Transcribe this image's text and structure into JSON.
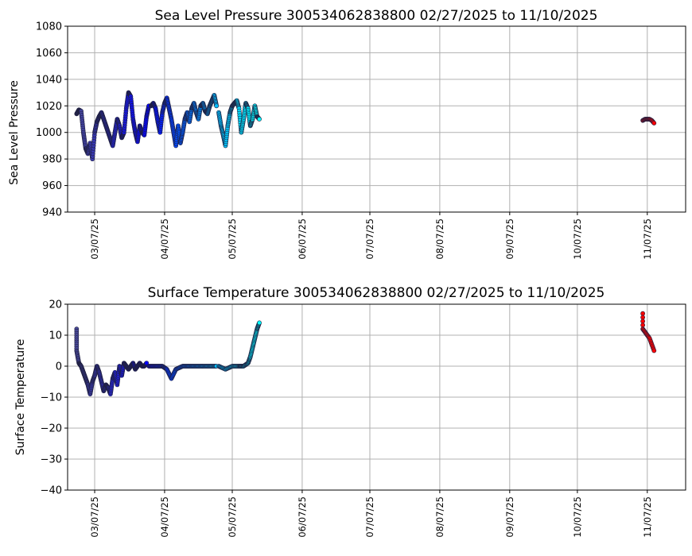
{
  "chart_data": [
    {
      "type": "scatter",
      "title": "Sea Level Pressure 300534062838800  02/27/2025 to 11/10/2025",
      "ylabel": "Sea Level Pressure",
      "xlabel": "",
      "ylim": [
        940,
        1080
      ],
      "yticks": [
        940,
        960,
        980,
        1000,
        1020,
        1040,
        1060,
        1080
      ],
      "xlim": [
        "2025-02-23",
        "2025-11-24"
      ],
      "xticks": [
        "2025-03-07",
        "2025-04-07",
        "2025-05-07",
        "2025-06-07",
        "2025-07-07",
        "2025-08-07",
        "2025-09-07",
        "2025-10-07",
        "2025-11-07"
      ],
      "xtick_labels": [
        "03/07/25",
        "04/07/25",
        "05/07/25",
        "06/07/25",
        "07/07/25",
        "08/07/25",
        "09/07/25",
        "10/07/25",
        "11/07/25"
      ],
      "grid": true,
      "color_by_time": [
        "#4a4a9a",
        "#0000ff",
        "#00bfff",
        "#00ffff",
        "#ff0000"
      ],
      "series": [
        {
          "color": "#ff0000",
          "x": [
            "2025-11-05",
            "2025-11-06",
            "2025-11-07",
            "2025-11-08",
            "2025-11-09",
            "2025-11-10"
          ],
          "y": [
            1009,
            1010,
            1010,
            1010,
            1009,
            1007
          ]
        }
      ],
      "segments": [
        {
          "color_start": "#4a4a9a",
          "color_end": "#0000ff",
          "x": [
            "2025-02-27",
            "2025-02-28",
            "2025-03-01",
            "2025-03-02",
            "2025-03-03",
            "2025-03-04",
            "2025-03-05",
            "2025-03-06",
            "2025-03-07",
            "2025-03-08",
            "2025-03-09",
            "2025-03-10",
            "2025-03-11",
            "2025-03-12",
            "2025-03-13",
            "2025-03-14",
            "2025-03-15",
            "2025-03-16",
            "2025-03-17",
            "2025-03-18",
            "2025-03-19",
            "2025-03-20",
            "2025-03-21",
            "2025-03-22",
            "2025-03-23",
            "2025-03-24",
            "2025-03-25",
            "2025-03-26",
            "2025-03-27",
            "2025-03-28",
            "2025-03-29",
            "2025-03-30",
            "2025-03-31"
          ],
          "y": [
            1014,
            1017,
            1016,
            1000,
            988,
            984,
            992,
            980,
            1000,
            1008,
            1012,
            1015,
            1010,
            1005,
            1000,
            995,
            990,
            1000,
            1010,
            1005,
            996,
            1000,
            1018,
            1030,
            1027,
            1010,
            1000,
            993,
            1005,
            1000,
            998,
            1012,
            1020
          ]
        },
        {
          "color_start": "#0000ff",
          "color_end": "#00bfff",
          "x": [
            "2025-04-01",
            "2025-04-02",
            "2025-04-03",
            "2025-04-04",
            "2025-04-05",
            "2025-04-06",
            "2025-04-07",
            "2025-04-08",
            "2025-04-09",
            "2025-04-10",
            "2025-04-11",
            "2025-04-12",
            "2025-04-13",
            "2025-04-14",
            "2025-04-15",
            "2025-04-16",
            "2025-04-17",
            "2025-04-18",
            "2025-04-19",
            "2025-04-20",
            "2025-04-21",
            "2025-04-22",
            "2025-04-23",
            "2025-04-24",
            "2025-04-25",
            "2025-04-26",
            "2025-04-27",
            "2025-04-28",
            "2025-04-29",
            "2025-04-30"
          ],
          "y": [
            1020,
            1022,
            1018,
            1008,
            1000,
            1015,
            1022,
            1026,
            1018,
            1010,
            1000,
            990,
            1005,
            992,
            1000,
            1010,
            1015,
            1008,
            1018,
            1022,
            1015,
            1010,
            1020,
            1022,
            1016,
            1014,
            1020,
            1024,
            1028,
            1020
          ]
        },
        {
          "color_start": "#00bfff",
          "color_end": "#00ffff",
          "x": [
            "2025-05-01",
            "2025-05-02",
            "2025-05-03",
            "2025-05-04",
            "2025-05-05",
            "2025-05-06",
            "2025-05-07",
            "2025-05-08",
            "2025-05-09",
            "2025-05-10",
            "2025-05-11",
            "2025-05-12",
            "2025-05-13",
            "2025-05-14",
            "2025-05-15",
            "2025-05-16",
            "2025-05-17",
            "2025-05-18",
            "2025-05-19"
          ],
          "y": [
            1015,
            1005,
            998,
            990,
            1005,
            1015,
            1020,
            1022,
            1024,
            1018,
            1000,
            1010,
            1022,
            1018,
            1005,
            1010,
            1020,
            1012,
            1010
          ]
        }
      ]
    },
    {
      "type": "scatter",
      "title": "Surface Temperature 300534062838800  02/27/2025 to 11/10/2025",
      "ylabel": "Surface Temperature",
      "xlabel": "",
      "ylim": [
        -40,
        20
      ],
      "yticks": [
        -40,
        -30,
        -20,
        -10,
        0,
        10,
        20
      ],
      "xlim": [
        "2025-02-23",
        "2025-11-24"
      ],
      "xticks": [
        "2025-03-07",
        "2025-04-07",
        "2025-05-07",
        "2025-06-07",
        "2025-07-07",
        "2025-08-07",
        "2025-09-07",
        "2025-10-07",
        "2025-11-07"
      ],
      "xtick_labels": [
        "03/07/25",
        "04/07/25",
        "05/07/25",
        "06/07/25",
        "07/07/25",
        "08/07/25",
        "09/07/25",
        "10/07/25",
        "11/07/25"
      ],
      "grid": true,
      "color_by_time": [
        "#4a4a9a",
        "#0000ff",
        "#00bfff",
        "#00ffff",
        "#ff0000"
      ],
      "series": [
        {
          "color": "#ff0000",
          "x": [
            "2025-11-05",
            "2025-11-05",
            "2025-11-06",
            "2025-11-07",
            "2025-11-08",
            "2025-11-09",
            "2025-11-10"
          ],
          "y": [
            17,
            12,
            11,
            10,
            9,
            7,
            5
          ]
        }
      ],
      "segments": [
        {
          "color_start": "#4a4a9a",
          "color_end": "#0000ff",
          "x": [
            "2025-02-27",
            "2025-02-27",
            "2025-02-28",
            "2025-03-01",
            "2025-03-02",
            "2025-03-03",
            "2025-03-04",
            "2025-03-05",
            "2025-03-06",
            "2025-03-07",
            "2025-03-08",
            "2025-03-09",
            "2025-03-10",
            "2025-03-11",
            "2025-03-12",
            "2025-03-13",
            "2025-03-14",
            "2025-03-15",
            "2025-03-16",
            "2025-03-17",
            "2025-03-18",
            "2025-03-19",
            "2025-03-20",
            "2025-03-21",
            "2025-03-22",
            "2025-03-23",
            "2025-03-24",
            "2025-03-25",
            "2025-03-26",
            "2025-03-27",
            "2025-03-28",
            "2025-03-29",
            "2025-03-30"
          ],
          "y": [
            12,
            5,
            1,
            0,
            -2,
            -4,
            -6,
            -9,
            -5,
            -3,
            0,
            -2,
            -5,
            -8,
            -6,
            -7,
            -9,
            -4,
            -2,
            -6,
            0,
            -3,
            1,
            0,
            -1,
            0,
            1,
            -1,
            0,
            1,
            0,
            0,
            1
          ]
        },
        {
          "color_start": "#0000ff",
          "color_end": "#00bfff",
          "x": [
            "2025-03-31",
            "2025-04-03",
            "2025-04-06",
            "2025-04-08",
            "2025-04-10",
            "2025-04-12",
            "2025-04-15",
            "2025-04-18",
            "2025-04-21",
            "2025-04-24",
            "2025-04-27",
            "2025-04-30"
          ],
          "y": [
            0,
            0,
            0,
            -1,
            -4,
            -1,
            0,
            0,
            0,
            0,
            0,
            0
          ]
        },
        {
          "color_start": "#00bfff",
          "color_end": "#00ffff",
          "x": [
            "2025-05-01",
            "2025-05-04",
            "2025-05-07",
            "2025-05-10",
            "2025-05-12",
            "2025-05-14",
            "2025-05-15",
            "2025-05-16",
            "2025-05-17",
            "2025-05-18",
            "2025-05-19"
          ],
          "y": [
            0,
            -1,
            0,
            0,
            0,
            1,
            3,
            6,
            9,
            12,
            14
          ]
        }
      ]
    }
  ]
}
